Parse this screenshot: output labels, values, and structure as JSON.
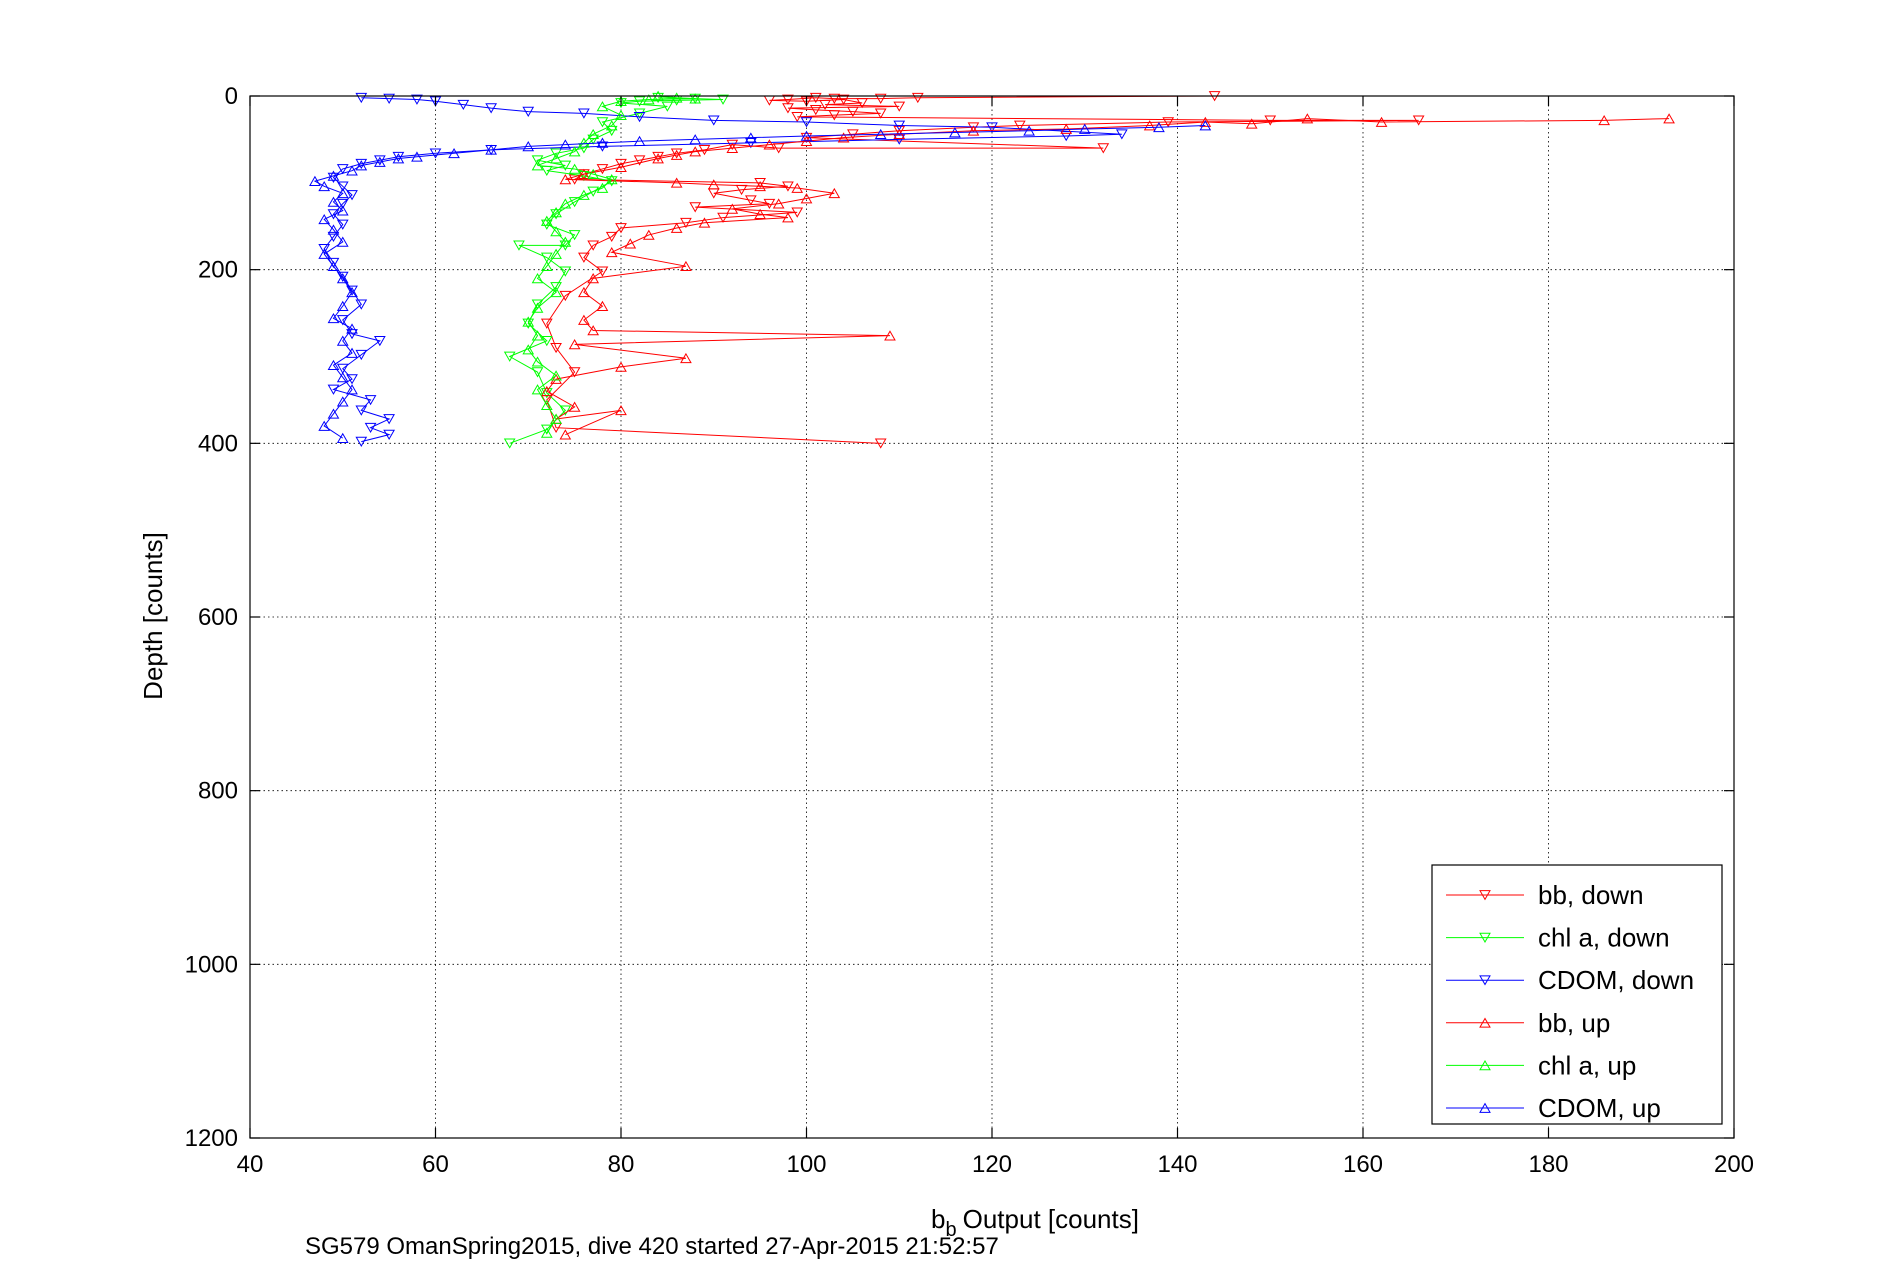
{
  "chart_data": {
    "type": "scatter",
    "title": "",
    "xlabel": "Output [counts]",
    "xlabel_prefix": "b",
    "xlabel_sub": "b",
    "ylabel": "Depth [counts]",
    "footer": "SG579 OmanSpring2015, dive 420 started 27-Apr-2015 21:52:57",
    "xlim": [
      40,
      200
    ],
    "ylim": [
      0,
      1200
    ],
    "y_reversed": true,
    "grid": true,
    "legend_position": "bottom-right",
    "x_ticks": [
      "40",
      "60",
      "80",
      "100",
      "120",
      "140",
      "160",
      "180",
      "200"
    ],
    "y_ticks": [
      "0",
      "200",
      "400",
      "600",
      "800",
      "1000",
      "1200"
    ],
    "series": [
      {
        "name": "bb, down",
        "color": "#ff0000",
        "marker": "down",
        "points": [
          [
            144,
            0
          ],
          [
            112,
            2
          ],
          [
            108,
            3
          ],
          [
            103,
            3
          ],
          [
            101,
            2
          ],
          [
            98,
            4
          ],
          [
            96,
            5
          ],
          [
            100,
            6
          ],
          [
            104,
            4
          ],
          [
            106,
            8
          ],
          [
            102,
            10
          ],
          [
            110,
            12
          ],
          [
            98,
            14
          ],
          [
            101,
            16
          ],
          [
            105,
            18
          ],
          [
            108,
            20
          ],
          [
            103,
            22
          ],
          [
            99,
            24
          ],
          [
            150,
            28
          ],
          [
            166,
            28
          ],
          [
            139,
            30
          ],
          [
            123,
            34
          ],
          [
            118,
            36
          ],
          [
            110,
            40
          ],
          [
            105,
            44
          ],
          [
            100,
            48
          ],
          [
            132,
            60
          ],
          [
            97,
            60
          ],
          [
            92,
            56
          ],
          [
            89,
            62
          ],
          [
            86,
            66
          ],
          [
            84,
            70
          ],
          [
            82,
            74
          ],
          [
            80,
            78
          ],
          [
            78,
            84
          ],
          [
            76,
            90
          ],
          [
            75,
            96
          ],
          [
            95,
            100
          ],
          [
            98,
            104
          ],
          [
            93,
            108
          ],
          [
            90,
            112
          ],
          [
            94,
            120
          ],
          [
            96,
            124
          ],
          [
            88,
            128
          ],
          [
            99,
            134
          ],
          [
            91,
            140
          ],
          [
            87,
            146
          ],
          [
            80,
            152
          ],
          [
            79,
            162
          ],
          [
            77,
            172
          ],
          [
            76,
            186
          ],
          [
            78,
            202
          ],
          [
            74,
            230
          ],
          [
            72,
            262
          ],
          [
            73,
            290
          ],
          [
            75,
            318
          ],
          [
            72,
            350
          ],
          [
            73,
            382
          ],
          [
            108,
            400
          ]
        ]
      },
      {
        "name": "chl a, down",
        "color": "#00ff00",
        "marker": "down",
        "points": [
          [
            84,
            2
          ],
          [
            88,
            3
          ],
          [
            91,
            4
          ],
          [
            86,
            5
          ],
          [
            82,
            6
          ],
          [
            80,
            8
          ],
          [
            85,
            12
          ],
          [
            82,
            20
          ],
          [
            78,
            30
          ],
          [
            79,
            40
          ],
          [
            77,
            50
          ],
          [
            76,
            60
          ],
          [
            73,
            66
          ],
          [
            71,
            74
          ],
          [
            74,
            80
          ],
          [
            72,
            86
          ],
          [
            76,
            92
          ],
          [
            79,
            98
          ],
          [
            77,
            110
          ],
          [
            75,
            122
          ],
          [
            73,
            136
          ],
          [
            72,
            148
          ],
          [
            75,
            160
          ],
          [
            74,
            172
          ],
          [
            69,
            172
          ],
          [
            72,
            186
          ],
          [
            74,
            202
          ],
          [
            73,
            220
          ],
          [
            71,
            240
          ],
          [
            70,
            262
          ],
          [
            72,
            282
          ],
          [
            68,
            300
          ],
          [
            71,
            318
          ],
          [
            72,
            342
          ],
          [
            74,
            362
          ],
          [
            72,
            384
          ],
          [
            68,
            400
          ]
        ]
      },
      {
        "name": "CDOM, down",
        "color": "#0000ff",
        "marker": "down",
        "points": [
          [
            52,
            2
          ],
          [
            55,
            3
          ],
          [
            58,
            4
          ],
          [
            60,
            6
          ],
          [
            63,
            10
          ],
          [
            66,
            14
          ],
          [
            70,
            18
          ],
          [
            76,
            20
          ],
          [
            82,
            24
          ],
          [
            90,
            28
          ],
          [
            100,
            30
          ],
          [
            110,
            34
          ],
          [
            120,
            36
          ],
          [
            134,
            44
          ],
          [
            128,
            46
          ],
          [
            110,
            50
          ],
          [
            94,
            54
          ],
          [
            78,
            58
          ],
          [
            66,
            62
          ],
          [
            60,
            66
          ],
          [
            56,
            70
          ],
          [
            54,
            74
          ],
          [
            52,
            78
          ],
          [
            50,
            84
          ],
          [
            49,
            94
          ],
          [
            50,
            104
          ],
          [
            51,
            114
          ],
          [
            50,
            124
          ],
          [
            49,
            136
          ],
          [
            50,
            148
          ],
          [
            49,
            162
          ],
          [
            48,
            176
          ],
          [
            49,
            192
          ],
          [
            50,
            208
          ],
          [
            51,
            224
          ],
          [
            52,
            240
          ],
          [
            50,
            258
          ],
          [
            51,
            274
          ],
          [
            54,
            282
          ],
          [
            52,
            298
          ],
          [
            50,
            314
          ],
          [
            51,
            326
          ],
          [
            49,
            338
          ],
          [
            53,
            350
          ],
          [
            52,
            362
          ],
          [
            55,
            372
          ],
          [
            53,
            382
          ],
          [
            55,
            390
          ],
          [
            52,
            398
          ]
        ]
      },
      {
        "name": "bb, up",
        "color": "#ff0000",
        "marker": "up",
        "points": [
          [
            193,
            26
          ],
          [
            186,
            28
          ],
          [
            162,
            30
          ],
          [
            154,
            26
          ],
          [
            148,
            32
          ],
          [
            143,
            30
          ],
          [
            137,
            34
          ],
          [
            128,
            38
          ],
          [
            118,
            40
          ],
          [
            110,
            44
          ],
          [
            104,
            48
          ],
          [
            100,
            52
          ],
          [
            96,
            56
          ],
          [
            92,
            60
          ],
          [
            88,
            64
          ],
          [
            86,
            68
          ],
          [
            84,
            72
          ],
          [
            80,
            82
          ],
          [
            76,
            90
          ],
          [
            74,
            96
          ],
          [
            86,
            100
          ],
          [
            90,
            102
          ],
          [
            95,
            104
          ],
          [
            99,
            106
          ],
          [
            103,
            112
          ],
          [
            100,
            118
          ],
          [
            97,
            124
          ],
          [
            92,
            130
          ],
          [
            95,
            136
          ],
          [
            98,
            140
          ],
          [
            89,
            146
          ],
          [
            86,
            152
          ],
          [
            83,
            160
          ],
          [
            81,
            170
          ],
          [
            79,
            180
          ],
          [
            87,
            196
          ],
          [
            77,
            210
          ],
          [
            76,
            226
          ],
          [
            78,
            242
          ],
          [
            76,
            258
          ],
          [
            77,
            270
          ],
          [
            109,
            276
          ],
          [
            75,
            286
          ],
          [
            87,
            302
          ],
          [
            80,
            312
          ],
          [
            73,
            326
          ],
          [
            72,
            340
          ],
          [
            75,
            358
          ],
          [
            73,
            372
          ],
          [
            80,
            362
          ],
          [
            74,
            390
          ]
        ]
      },
      {
        "name": "chl a, up",
        "color": "#00ff00",
        "marker": "up",
        "points": [
          [
            84,
            0
          ],
          [
            86,
            2
          ],
          [
            88,
            3
          ],
          [
            83,
            4
          ],
          [
            80,
            6
          ],
          [
            78,
            12
          ],
          [
            80,
            22
          ],
          [
            79,
            34
          ],
          [
            77,
            44
          ],
          [
            76,
            54
          ],
          [
            75,
            64
          ],
          [
            73,
            72
          ],
          [
            71,
            80
          ],
          [
            75,
            84
          ],
          [
            77,
            90
          ],
          [
            79,
            96
          ],
          [
            78,
            106
          ],
          [
            76,
            114
          ],
          [
            74,
            124
          ],
          [
            73,
            134
          ],
          [
            72,
            144
          ],
          [
            73,
            156
          ],
          [
            74,
            168
          ],
          [
            73,
            182
          ],
          [
            72,
            196
          ],
          [
            71,
            210
          ],
          [
            73,
            226
          ],
          [
            71,
            244
          ],
          [
            70,
            260
          ],
          [
            71,
            276
          ],
          [
            70,
            292
          ],
          [
            71,
            306
          ],
          [
            73,
            322
          ],
          [
            71,
            338
          ],
          [
            72,
            356
          ],
          [
            73,
            372
          ],
          [
            72,
            388
          ]
        ]
      },
      {
        "name": "CDOM, up",
        "color": "#0000ff",
        "marker": "up",
        "points": [
          [
            143,
            34
          ],
          [
            138,
            36
          ],
          [
            130,
            38
          ],
          [
            124,
            40
          ],
          [
            116,
            42
          ],
          [
            108,
            44
          ],
          [
            100,
            46
          ],
          [
            94,
            48
          ],
          [
            88,
            50
          ],
          [
            82,
            52
          ],
          [
            78,
            54
          ],
          [
            74,
            56
          ],
          [
            70,
            58
          ],
          [
            66,
            62
          ],
          [
            62,
            66
          ],
          [
            58,
            70
          ],
          [
            56,
            72
          ],
          [
            54,
            76
          ],
          [
            52,
            80
          ],
          [
            51,
            86
          ],
          [
            49,
            92
          ],
          [
            47,
            98
          ],
          [
            48,
            104
          ],
          [
            50,
            112
          ],
          [
            49,
            122
          ],
          [
            50,
            132
          ],
          [
            48,
            142
          ],
          [
            49,
            154
          ],
          [
            50,
            168
          ],
          [
            48,
            182
          ],
          [
            49,
            196
          ],
          [
            50,
            210
          ],
          [
            51,
            226
          ],
          [
            50,
            242
          ],
          [
            49,
            256
          ],
          [
            51,
            268
          ],
          [
            50,
            282
          ],
          [
            51,
            296
          ],
          [
            49,
            310
          ],
          [
            50,
            324
          ],
          [
            51,
            338
          ],
          [
            50,
            352
          ],
          [
            49,
            366
          ],
          [
            48,
            380
          ],
          [
            50,
            394
          ]
        ]
      }
    ]
  }
}
